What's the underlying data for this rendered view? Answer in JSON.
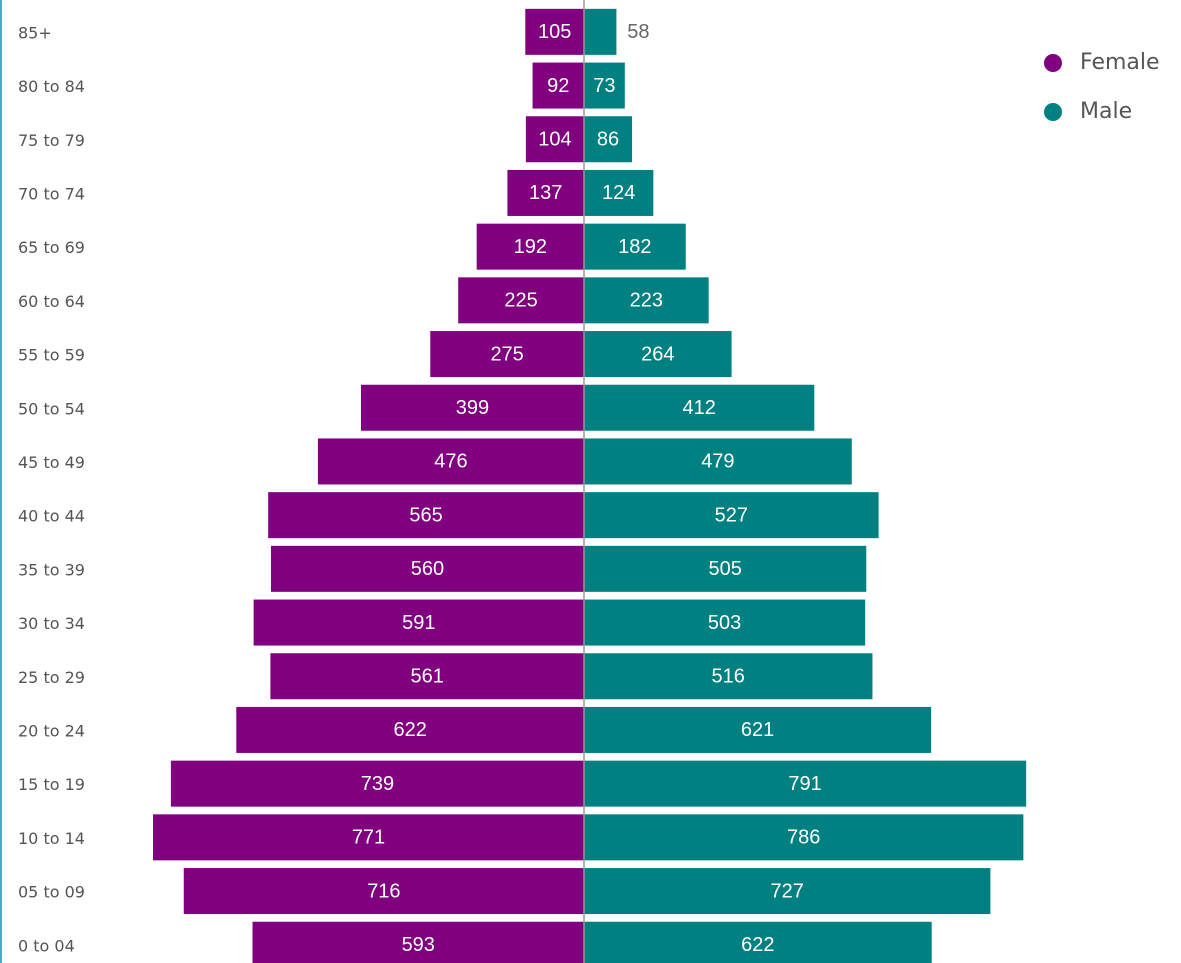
{
  "chart_data": {
    "type": "pyramid",
    "categories": [
      "85+",
      "80 to 84",
      "75 to 79",
      "70 to 74",
      "65 to 69",
      "60 to 64",
      "55 to 59",
      "50 to 54",
      "45 to 49",
      "40 to 44",
      "35 to 39",
      "30 to 34",
      "25 to 29",
      "20 to 24",
      "15 to 19",
      "10 to 14",
      "05 to 09",
      "0 to 04"
    ],
    "series": [
      {
        "name": "Female",
        "color": "#800080",
        "values": [
          105,
          92,
          104,
          137,
          192,
          225,
          275,
          399,
          476,
          565,
          560,
          591,
          561,
          622,
          739,
          771,
          716,
          593
        ]
      },
      {
        "name": "Male",
        "color": "#008080",
        "values": [
          58,
          73,
          86,
          124,
          182,
          223,
          264,
          412,
          479,
          527,
          505,
          503,
          516,
          621,
          791,
          786,
          727,
          622
        ]
      }
    ]
  }
}
